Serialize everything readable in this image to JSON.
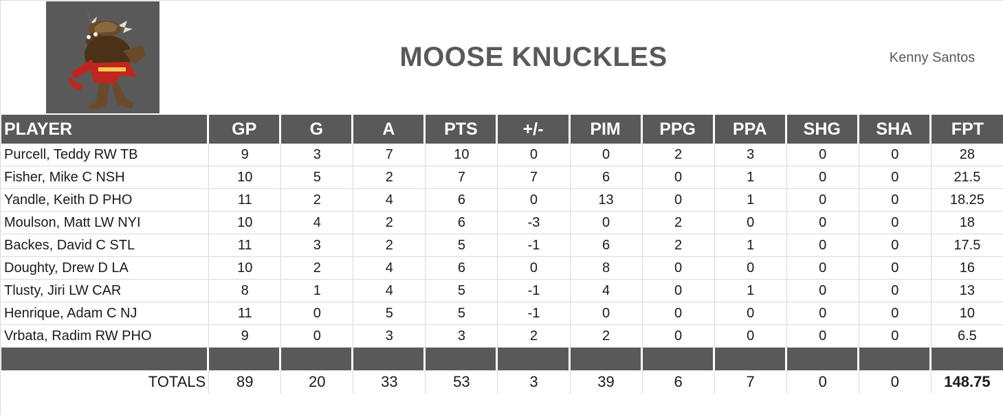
{
  "team": {
    "name": "MOOSE KNUCKLES",
    "owner": "Kenny Santos"
  },
  "logo": {
    "icon": "moose-mascot-logo",
    "background": "#595959"
  },
  "colors": {
    "header_bg": "#595959",
    "header_text": "#ffffff",
    "title_text": "#595959"
  },
  "columns": [
    "PLAYER",
    "GP",
    "G",
    "A",
    "PTS",
    "+/-",
    "PIM",
    "PPG",
    "PPA",
    "SHG",
    "SHA",
    "FPT"
  ],
  "rows": [
    {
      "player": "Purcell, Teddy RW TB",
      "gp": "9",
      "g": "3",
      "a": "7",
      "pts": "10",
      "pm": "0",
      "pim": "0",
      "ppg": "2",
      "ppa": "3",
      "shg": "0",
      "sha": "0",
      "fpt": "28"
    },
    {
      "player": "Fisher, Mike C NSH",
      "gp": "10",
      "g": "5",
      "a": "2",
      "pts": "7",
      "pm": "7",
      "pim": "6",
      "ppg": "0",
      "ppa": "1",
      "shg": "0",
      "sha": "0",
      "fpt": "21.5"
    },
    {
      "player": "Yandle, Keith D PHO",
      "gp": "11",
      "g": "2",
      "a": "4",
      "pts": "6",
      "pm": "0",
      "pim": "13",
      "ppg": "0",
      "ppa": "1",
      "shg": "0",
      "sha": "0",
      "fpt": "18.25"
    },
    {
      "player": "Moulson, Matt LW NYI",
      "gp": "10",
      "g": "4",
      "a": "2",
      "pts": "6",
      "pm": "-3",
      "pim": "0",
      "ppg": "2",
      "ppa": "0",
      "shg": "0",
      "sha": "0",
      "fpt": "18"
    },
    {
      "player": "Backes, David C STL",
      "gp": "11",
      "g": "3",
      "a": "2",
      "pts": "5",
      "pm": "-1",
      "pim": "6",
      "ppg": "2",
      "ppa": "1",
      "shg": "0",
      "sha": "0",
      "fpt": "17.5"
    },
    {
      "player": "Doughty, Drew D LA",
      "gp": "10",
      "g": "2",
      "a": "4",
      "pts": "6",
      "pm": "0",
      "pim": "8",
      "ppg": "0",
      "ppa": "0",
      "shg": "0",
      "sha": "0",
      "fpt": "16"
    },
    {
      "player": "Tlusty, Jiri LW CAR",
      "gp": "8",
      "g": "1",
      "a": "4",
      "pts": "5",
      "pm": "-1",
      "pim": "4",
      "ppg": "0",
      "ppa": "1",
      "shg": "0",
      "sha": "0",
      "fpt": "13"
    },
    {
      "player": "Henrique, Adam C NJ",
      "gp": "11",
      "g": "0",
      "a": "5",
      "pts": "5",
      "pm": "-1",
      "pim": "0",
      "ppg": "0",
      "ppa": "0",
      "shg": "0",
      "sha": "0",
      "fpt": "10"
    },
    {
      "player": "Vrbata, Radim RW PHO",
      "gp": "9",
      "g": "0",
      "a": "3",
      "pts": "3",
      "pm": "2",
      "pim": "2",
      "ppg": "0",
      "ppa": "0",
      "shg": "0",
      "sha": "0",
      "fpt": "6.5"
    }
  ],
  "totals": {
    "label": "TOTALS",
    "gp": "89",
    "g": "20",
    "a": "33",
    "pts": "53",
    "pm": "3",
    "pim": "39",
    "ppg": "6",
    "ppa": "7",
    "shg": "0",
    "sha": "0",
    "fpt": "148.75"
  }
}
